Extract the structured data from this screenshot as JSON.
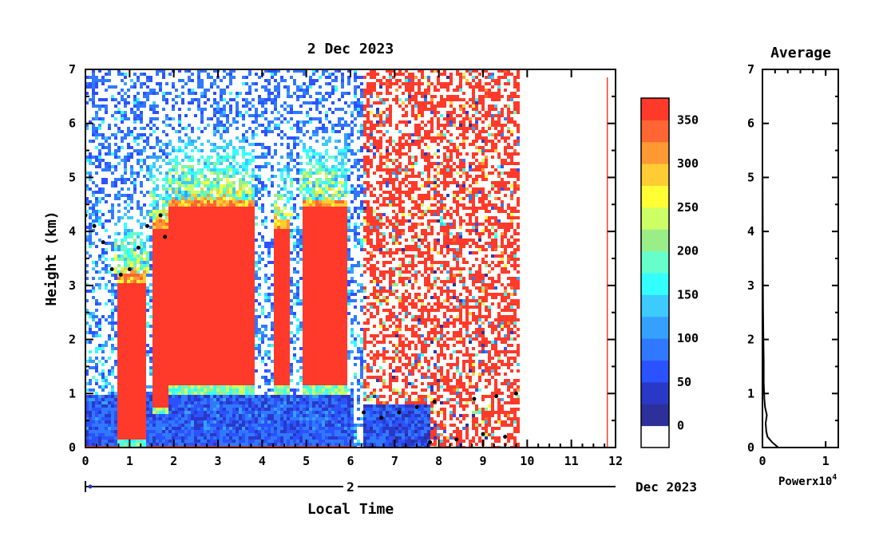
{
  "chart_data": [
    {
      "type": "heatmap",
      "title": "2 Dec 2023",
      "xlabel": "Local Time",
      "ylabel": "Height (km)",
      "x_ticks": [
        "0",
        "1",
        "2",
        "3",
        "4",
        "5",
        "6",
        "7",
        "8",
        "9",
        "10",
        "11",
        "12"
      ],
      "y_ticks": [
        "0",
        "1",
        "2",
        "3",
        "4",
        "5",
        "6",
        "7"
      ],
      "xlim": [
        0,
        12
      ],
      "ylim": [
        0,
        7
      ],
      "date_axis": {
        "day_label": "2",
        "month_label": "Dec 2023"
      },
      "colorbar": {
        "ticks": [
          "0",
          "50",
          "100",
          "150",
          "200",
          "250",
          "300",
          "350"
        ],
        "tick_values": [
          0,
          50,
          100,
          150,
          200,
          250,
          300,
          350
        ],
        "range": [
          -25,
          375
        ],
        "colors": [
          "#2d2f9a",
          "#2a38c8",
          "#2b52ff",
          "#3078ff",
          "#36a0ff",
          "#3ccaff",
          "#33ffff",
          "#66ffcc",
          "#99ee88",
          "#ccff66",
          "#ffff33",
          "#ffcc33",
          "#ff9933",
          "#ff6633",
          "#ff3a2a"
        ],
        "zero_color": "#ffffff"
      },
      "data_end_hour": 9.8,
      "cloud_regions": [
        {
          "t_start": 0.7,
          "t_end": 1.4,
          "base_km": 0.0,
          "top_km": 3.2
        },
        {
          "t_start": 1.5,
          "t_end": 1.9,
          "base_km": 0.6,
          "top_km": 4.2
        },
        {
          "t_start": 1.9,
          "t_end": 3.8,
          "base_km": 1.0,
          "top_km": 4.6
        },
        {
          "t_start": 4.3,
          "t_end": 4.65,
          "base_km": 1.0,
          "top_km": 4.2
        },
        {
          "t_start": 4.9,
          "t_end": 5.9,
          "base_km": 1.0,
          "top_km": 4.6
        }
      ],
      "cloud_base_points": [
        {
          "t": 0.0,
          "h": 4.3
        },
        {
          "t": 0.2,
          "h": 4.1
        },
        {
          "t": 0.4,
          "h": 3.8
        },
        {
          "t": 0.6,
          "h": 3.3
        },
        {
          "t": 0.8,
          "h": 3.2
        },
        {
          "t": 1.0,
          "h": 3.3
        },
        {
          "t": 1.2,
          "h": 3.7
        },
        {
          "t": 1.4,
          "h": 4.1
        },
        {
          "t": 1.7,
          "h": 4.3
        },
        {
          "t": 1.8,
          "h": 3.9
        },
        {
          "t": 6.3,
          "h": 0.65
        },
        {
          "t": 6.7,
          "h": 0.55
        },
        {
          "t": 7.1,
          "h": 0.65
        },
        {
          "t": 7.5,
          "h": 0.75
        },
        {
          "t": 7.9,
          "h": 0.85
        },
        {
          "t": 8.8,
          "h": 0.9
        },
        {
          "t": 9.3,
          "h": 0.95
        },
        {
          "t": 9.75,
          "h": 1.0
        },
        {
          "t": 7.8,
          "h": 0.1
        },
        {
          "t": 8.4,
          "h": 0.15
        },
        {
          "t": 9.0,
          "h": 0.25
        },
        {
          "t": 9.5,
          "h": 0.2
        }
      ]
    },
    {
      "type": "line",
      "title": "Average",
      "xlabel": "Power",
      "x_exponent_label": "x10",
      "x_exponent_sup": "4",
      "x_ticks": [
        "0",
        "1"
      ],
      "xlim": [
        0,
        1.2
      ],
      "y_ticks": [
        "0",
        "1",
        "2",
        "3",
        "4",
        "5",
        "6",
        "7"
      ],
      "ylim": [
        0,
        7
      ],
      "x": [
        0.25,
        0.15,
        0.08,
        0.06,
        0.05,
        0.07,
        0.04,
        0.03,
        0.02,
        0.02,
        0.015,
        0.01,
        0.008,
        0.006,
        0.005,
        0.004,
        0.003
      ],
      "y": [
        0.0,
        0.1,
        0.2,
        0.3,
        0.45,
        0.6,
        0.75,
        0.9,
        1.2,
        1.6,
        2.0,
        2.5,
        3.0,
        3.5,
        4.0,
        4.5,
        5.0
      ]
    }
  ]
}
